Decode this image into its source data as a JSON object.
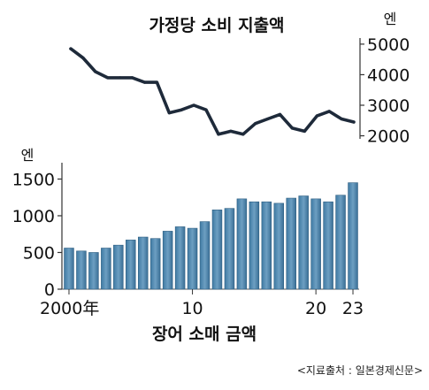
{
  "chart_data": [
    {
      "type": "line",
      "title": "가정당 소비 지출액",
      "unit_label": "엔",
      "x": [
        2000,
        2001,
        2002,
        2003,
        2004,
        2005,
        2006,
        2007,
        2008,
        2009,
        2010,
        2011,
        2012,
        2013,
        2014,
        2015,
        2016,
        2017,
        2018,
        2019,
        2020,
        2021,
        2022,
        2023
      ],
      "values": [
        4850,
        4550,
        4100,
        3900,
        3900,
        3900,
        3750,
        3750,
        2750,
        2850,
        3000,
        2850,
        2050,
        2150,
        2050,
        2400,
        2550,
        2700,
        2250,
        2150,
        2650,
        2800,
        2550,
        2450
      ],
      "yticks": [
        2000,
        3000,
        4000,
        5000
      ],
      "ylim": [
        1900,
        5200
      ],
      "color": "#1e2a3a"
    },
    {
      "type": "bar",
      "title": "장어 소매 금액",
      "unit_label": "엔",
      "x": [
        2000,
        2001,
        2002,
        2003,
        2004,
        2005,
        2006,
        2007,
        2008,
        2009,
        2010,
        2011,
        2012,
        2013,
        2014,
        2015,
        2016,
        2017,
        2018,
        2019,
        2020,
        2021,
        2022,
        2023
      ],
      "values": [
        560,
        520,
        500,
        560,
        600,
        670,
        710,
        690,
        790,
        850,
        830,
        920,
        1080,
        1100,
        1230,
        1190,
        1190,
        1170,
        1240,
        1270,
        1230,
        1190,
        1280,
        1450
      ],
      "xtick_labels": [
        {
          "x": 2000,
          "label": "2000年"
        },
        {
          "x": 2010,
          "label": "10"
        },
        {
          "x": 2020,
          "label": "20"
        },
        {
          "x": 2023,
          "label": "23"
        }
      ],
      "yticks": [
        0,
        500,
        1000,
        1500
      ],
      "ylim": [
        0,
        1650
      ],
      "color": "#4f87ad"
    }
  ],
  "source": "<지료출처 : 일본경제신문>"
}
